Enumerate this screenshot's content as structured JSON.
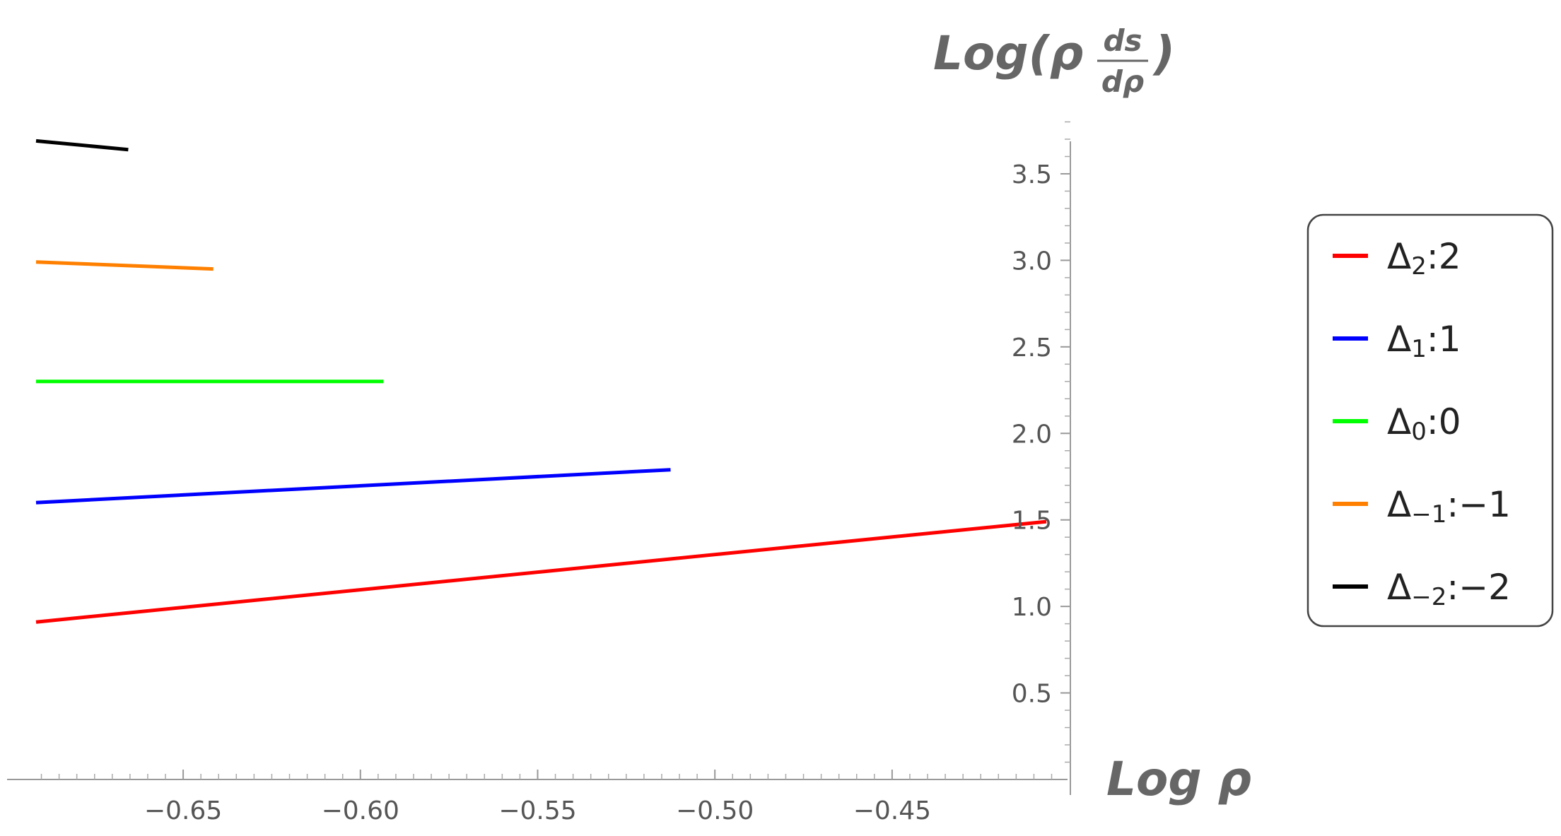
{
  "chart_data": {
    "type": "line",
    "xlabel": {
      "prefix": "Log ",
      "var": "ρ"
    },
    "ylabel": {
      "prefix": "Log(",
      "var": "ρ",
      "frac_num": "ds",
      "frac_den": "dρ",
      "suffix": ")"
    },
    "xlim": [
      -0.6925,
      -0.4047
    ],
    "ylim": [
      0.0,
      3.9
    ],
    "x_ticks": [
      "-0.65",
      "-0.60",
      "-0.55",
      "-0.50",
      "-0.45"
    ],
    "x_tick_values": [
      -0.65,
      -0.6,
      -0.55,
      -0.5,
      -0.45
    ],
    "y_ticks": [
      "0.5",
      "1.0",
      "1.5",
      "2.0",
      "2.5",
      "3.0",
      "3.5"
    ],
    "y_tick_values": [
      0.5,
      1.0,
      1.5,
      2.0,
      2.5,
      3.0,
      3.5
    ],
    "grid": false,
    "legend_position": "right",
    "series": [
      {
        "name": "Δ2:2",
        "label_base": "Δ",
        "label_sub": "2",
        "label_rest": ":2",
        "color": "#ff0000",
        "x": [
          -0.6915,
          -0.4065
        ],
        "y": [
          0.91,
          1.49
        ]
      },
      {
        "name": "Δ1:1",
        "label_base": "Δ",
        "label_sub": "1",
        "label_rest": ":1",
        "color": "#0000ff",
        "x": [
          -0.6915,
          -0.5125
        ],
        "y": [
          1.6,
          1.79
        ]
      },
      {
        "name": "Δ0:0",
        "label_base": "Δ",
        "label_sub": "0",
        "label_rest": ":0",
        "color": "#00ff00",
        "x": [
          -0.6915,
          -0.5935
        ],
        "y": [
          2.3,
          2.3
        ]
      },
      {
        "name": "Δ−1:−1",
        "label_base": "Δ",
        "label_sub": "−1",
        "label_rest": ":−1",
        "color": "#ff8000",
        "x": [
          -0.6915,
          -0.6415
        ],
        "y": [
          2.99,
          2.95
        ]
      },
      {
        "name": "Δ−2:−2",
        "label_base": "Δ",
        "label_sub": "−2",
        "label_rest": ":−2",
        "color": "#000000",
        "x": [
          -0.6915,
          -0.6655
        ],
        "y": [
          3.69,
          3.64
        ]
      }
    ]
  }
}
